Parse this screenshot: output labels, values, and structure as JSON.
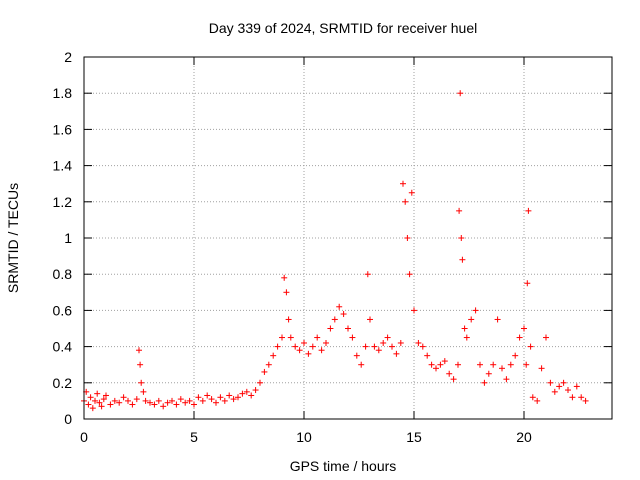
{
  "chart_data": {
    "type": "scatter",
    "title": "Day 339 of 2024, SRMTID for receiver huel",
    "xlabel": "GPS time / hours",
    "ylabel": "SRMTID / TECUs",
    "xlim": [
      0,
      24
    ],
    "ylim": [
      0,
      2
    ],
    "xticks": [
      0,
      5,
      10,
      15,
      20
    ],
    "xtick_labels": [
      "0",
      "5",
      "10",
      "15",
      "20"
    ],
    "yticks": [
      0,
      0.2,
      0.4,
      0.6,
      0.8,
      1,
      1.2,
      1.4,
      1.6,
      1.8,
      2
    ],
    "ytick_labels": [
      "0",
      "0.2",
      "0.4",
      "0.6",
      "0.8",
      "1",
      "1.2",
      "1.4",
      "1.6",
      "1.8",
      "2"
    ],
    "grid": true,
    "marker": "+",
    "color": "#ff0000",
    "series": [
      {
        "name": "SRMTID",
        "x": [
          0.0,
          0.1,
          0.2,
          0.3,
          0.4,
          0.5,
          0.6,
          0.7,
          0.8,
          0.9,
          1.0,
          1.2,
          1.4,
          1.6,
          1.8,
          2.0,
          2.2,
          2.4,
          2.5,
          2.55,
          2.6,
          2.7,
          2.8,
          3.0,
          3.2,
          3.4,
          3.6,
          3.8,
          4.0,
          4.2,
          4.4,
          4.6,
          4.8,
          5.0,
          5.2,
          5.4,
          5.6,
          5.8,
          6.0,
          6.2,
          6.4,
          6.6,
          6.8,
          7.0,
          7.2,
          7.4,
          7.6,
          7.8,
          8.0,
          8.2,
          8.4,
          8.6,
          8.8,
          9.0,
          9.1,
          9.2,
          9.3,
          9.4,
          9.6,
          9.8,
          10.0,
          10.2,
          10.4,
          10.6,
          10.8,
          11.0,
          11.2,
          11.4,
          11.6,
          11.8,
          12.0,
          12.2,
          12.4,
          12.6,
          12.8,
          12.9,
          13.0,
          13.2,
          13.4,
          13.6,
          13.8,
          14.0,
          14.2,
          14.4,
          14.5,
          14.6,
          14.7,
          14.8,
          14.9,
          15.0,
          15.2,
          15.4,
          15.6,
          15.8,
          16.0,
          16.2,
          16.4,
          16.6,
          16.8,
          17.0,
          17.05,
          17.1,
          17.15,
          17.2,
          17.3,
          17.4,
          17.6,
          17.8,
          18.0,
          18.2,
          18.4,
          18.6,
          18.8,
          19.0,
          19.2,
          19.4,
          19.6,
          19.8,
          20.0,
          20.1,
          20.15,
          20.2,
          20.3,
          20.4,
          20.6,
          20.8,
          21.0,
          21.2,
          21.4,
          21.6,
          21.8,
          22.0,
          22.2,
          22.4,
          22.6,
          22.8
        ],
        "y": [
          0.1,
          0.15,
          0.08,
          0.12,
          0.06,
          0.1,
          0.14,
          0.09,
          0.07,
          0.11,
          0.13,
          0.08,
          0.1,
          0.09,
          0.12,
          0.1,
          0.08,
          0.11,
          0.38,
          0.3,
          0.2,
          0.15,
          0.1,
          0.09,
          0.08,
          0.1,
          0.07,
          0.09,
          0.1,
          0.08,
          0.11,
          0.09,
          0.1,
          0.08,
          0.12,
          0.1,
          0.13,
          0.11,
          0.09,
          0.12,
          0.1,
          0.13,
          0.11,
          0.12,
          0.14,
          0.15,
          0.13,
          0.16,
          0.2,
          0.26,
          0.3,
          0.35,
          0.4,
          0.45,
          0.78,
          0.7,
          0.55,
          0.45,
          0.4,
          0.38,
          0.42,
          0.36,
          0.4,
          0.45,
          0.38,
          0.42,
          0.5,
          0.55,
          0.62,
          0.58,
          0.5,
          0.45,
          0.35,
          0.3,
          0.4,
          0.8,
          0.55,
          0.4,
          0.38,
          0.42,
          0.45,
          0.4,
          0.36,
          0.42,
          1.3,
          1.2,
          1.0,
          0.8,
          1.25,
          0.6,
          0.42,
          0.4,
          0.35,
          0.3,
          0.28,
          0.3,
          0.32,
          0.25,
          0.22,
          0.3,
          1.15,
          1.8,
          1.0,
          0.88,
          0.5,
          0.45,
          0.55,
          0.6,
          0.3,
          0.2,
          0.25,
          0.3,
          0.55,
          0.28,
          0.22,
          0.3,
          0.35,
          0.45,
          0.5,
          0.3,
          0.75,
          1.15,
          0.4,
          0.12,
          0.1,
          0.28,
          0.45,
          0.2,
          0.15,
          0.18,
          0.2,
          0.16,
          0.12,
          0.18,
          0.12,
          0.1
        ]
      }
    ]
  }
}
